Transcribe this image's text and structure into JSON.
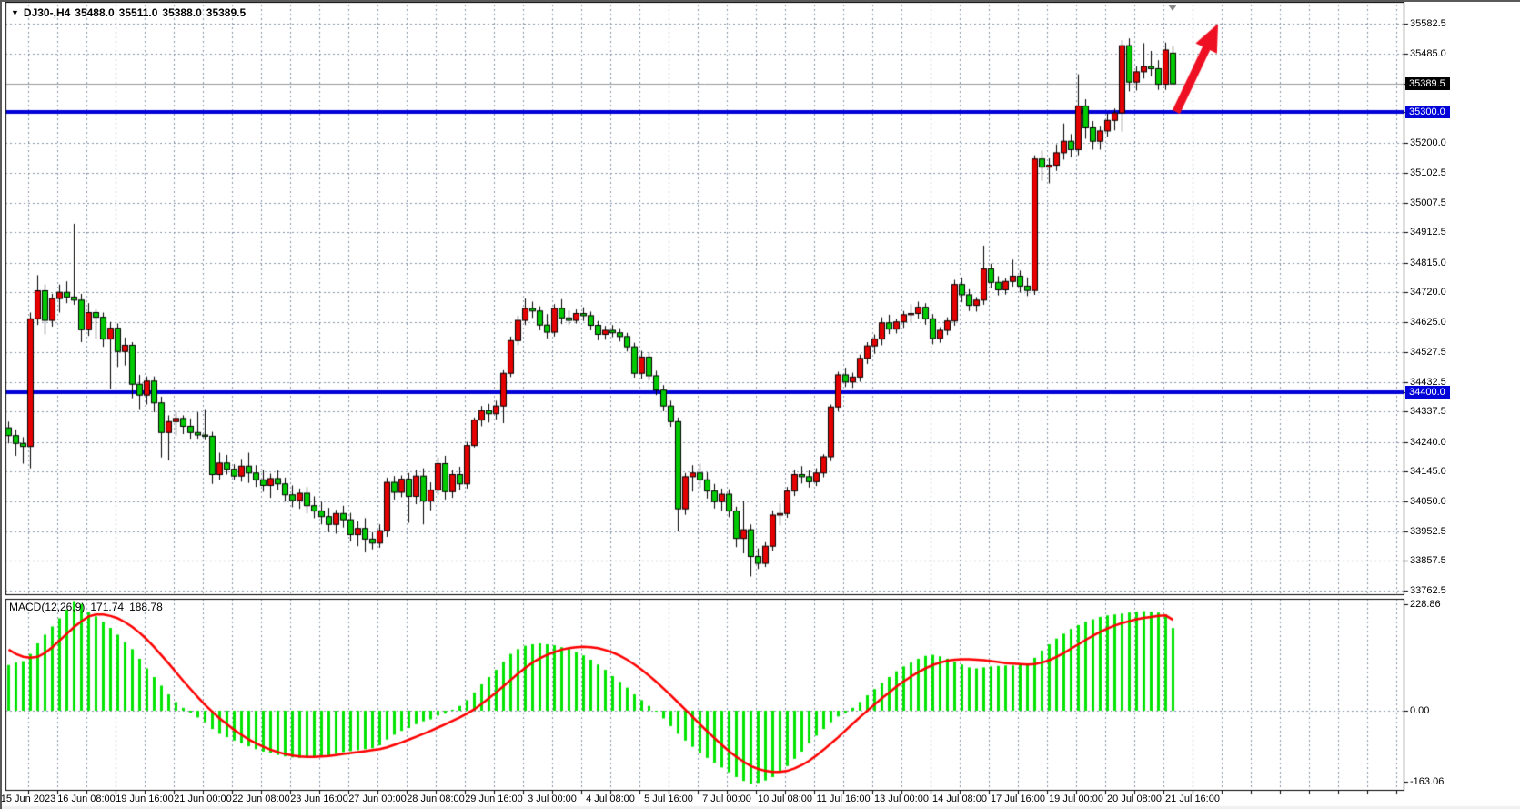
{
  "window": {
    "title": {
      "symbol": "DJ30-,H4",
      "open": "35488.0",
      "high": "35511.0",
      "low": "35388.0",
      "close": "35389.5"
    },
    "dropdown_icon": "▼"
  },
  "colors": {
    "bull": "#e60000",
    "bear": "#00ca00",
    "candle_border": "#000000",
    "hist": "#00e400",
    "signal": "#ff0000",
    "level_line": "#0000d8",
    "grid": "#8494a8",
    "current_price_line": "#9a9a9a",
    "arrow": "#ee0f22",
    "tag_current_bg": "#000000",
    "tag_level_bg": "#0000d8",
    "axis_text": "#000000",
    "background": "#ffffff",
    "border": "#000000"
  },
  "chart_data": {
    "type": "candlestick",
    "symbol": "DJ30-",
    "timeframe": "H4",
    "current_bar": {
      "open": 35488.0,
      "high": 35511.0,
      "low": 35388.0,
      "close": 35389.5
    },
    "price_axis": {
      "min": 33700,
      "max": 35650,
      "labels": [
        {
          "text": "35582.5"
        },
        {
          "text": "35485.0"
        },
        {
          "text": "35389.5",
          "highlight": "current"
        },
        {
          "text": "35300.0",
          "highlight": "level"
        },
        {
          "text": "35200.0"
        },
        {
          "text": "35102.5"
        },
        {
          "text": "35007.5"
        },
        {
          "text": "34912.5"
        },
        {
          "text": "34815.0"
        },
        {
          "text": "34720.0"
        },
        {
          "text": "34625.0"
        },
        {
          "text": "34527.5"
        },
        {
          "text": "34432.5"
        },
        {
          "text": "34400.0",
          "highlight": "level"
        },
        {
          "text": "34337.5"
        },
        {
          "text": "34240.0"
        },
        {
          "text": "34145.0"
        },
        {
          "text": "34050.0"
        },
        {
          "text": "33952.5"
        },
        {
          "text": "33857.5"
        },
        {
          "text": "33762.5"
        }
      ]
    },
    "time_axis": {
      "labels": [
        "15 Jun 2023",
        "16 Jun 08:00",
        "19 Jun 16:00",
        "21 Jun 00:00",
        "22 Jun 08:00",
        "23 Jun 16:00",
        "27 Jun 00:00",
        "28 Jun 08:00",
        "29 Jun 16:00",
        "3 Jul 00:00",
        "4 Jul 08:00",
        "5 Jul 16:00",
        "7 Jul 00:00",
        "10 Jul 08:00",
        "11 Jul 16:00",
        "13 Jul 00:00",
        "14 Jul 08:00",
        "17 Jul 16:00",
        "19 Jul 00:00",
        "20 Jul 08:00",
        "21 Jul 16:00"
      ]
    },
    "horizontal_levels": [
      35300.0,
      34400.0
    ],
    "current_price": 35389.5,
    "annotation_arrow": {
      "tail": [
        1291,
        121
      ],
      "tip": [
        1337,
        24
      ]
    },
    "candles": [
      [
        34285,
        34305,
        34235,
        34260
      ],
      [
        34260,
        34280,
        34195,
        34235
      ],
      [
        34235,
        34255,
        34170,
        34225
      ],
      [
        34225,
        34655,
        34155,
        34635
      ],
      [
        34635,
        34775,
        34615,
        34725
      ],
      [
        34725,
        34745,
        34585,
        34630
      ],
      [
        34630,
        34715,
        34610,
        34700
      ],
      [
        34700,
        34745,
        34655,
        34720
      ],
      [
        34720,
        34755,
        34685,
        34705
      ],
      [
        34705,
        34940,
        34680,
        34695
      ],
      [
        34695,
        34715,
        34560,
        34600
      ],
      [
        34600,
        34685,
        34580,
        34655
      ],
      [
        34655,
        34665,
        34570,
        34640
      ],
      [
        34640,
        34655,
        34545,
        34570
      ],
      [
        34570,
        34625,
        34410,
        34605
      ],
      [
        34605,
        34620,
        34480,
        34530
      ],
      [
        34530,
        34575,
        34485,
        34550
      ],
      [
        34550,
        34560,
        34380,
        34425
      ],
      [
        34425,
        34455,
        34345,
        34390
      ],
      [
        34390,
        34450,
        34360,
        34435
      ],
      [
        34435,
        34450,
        34335,
        34365
      ],
      [
        34365,
        34385,
        34190,
        34270
      ],
      [
        34270,
        34325,
        34180,
        34305
      ],
      [
        34305,
        34335,
        34260,
        34315
      ],
      [
        34315,
        34325,
        34265,
        34290
      ],
      [
        34290,
        34315,
        34250,
        34270
      ],
      [
        34270,
        34335,
        34250,
        34262
      ],
      [
        34262,
        34345,
        34248,
        34258
      ],
      [
        34258,
        34272,
        34105,
        34135
      ],
      [
        34135,
        34205,
        34118,
        34172
      ],
      [
        34172,
        34198,
        34135,
        34152
      ],
      [
        34152,
        34168,
        34118,
        34130
      ],
      [
        34130,
        34185,
        34112,
        34162
      ],
      [
        34162,
        34205,
        34108,
        34140
      ],
      [
        34140,
        34165,
        34095,
        34118
      ],
      [
        34118,
        34150,
        34080,
        34100
      ],
      [
        34100,
        34138,
        34060,
        34122
      ],
      [
        34122,
        34148,
        34085,
        34105
      ],
      [
        34105,
        34125,
        34048,
        34070
      ],
      [
        34070,
        34100,
        34030,
        34052
      ],
      [
        34052,
        34090,
        34025,
        34075
      ],
      [
        34075,
        34095,
        34010,
        34035
      ],
      [
        34035,
        34065,
        33995,
        34018
      ],
      [
        34018,
        34048,
        33975,
        34000
      ],
      [
        34000,
        34028,
        33950,
        33975
      ],
      [
        33975,
        34022,
        33945,
        34010
      ],
      [
        34010,
        34035,
        33965,
        33990
      ],
      [
        33990,
        34012,
        33920,
        33942
      ],
      [
        33942,
        33985,
        33905,
        33962
      ],
      [
        33962,
        33995,
        33885,
        33928
      ],
      [
        33928,
        33950,
        33895,
        33915
      ],
      [
        33915,
        33975,
        33900,
        33955
      ],
      [
        33955,
        34125,
        33935,
        34110
      ],
      [
        34110,
        34130,
        34055,
        34078
      ],
      [
        34078,
        34132,
        34062,
        34120
      ],
      [
        34120,
        34140,
        33980,
        34065
      ],
      [
        34065,
        34150,
        34040,
        34130
      ],
      [
        34130,
        34155,
        33975,
        34050
      ],
      [
        34050,
        34110,
        34020,
        34085
      ],
      [
        34085,
        34190,
        34070,
        34170
      ],
      [
        34170,
        34195,
        34055,
        34080
      ],
      [
        34080,
        34150,
        34060,
        34135
      ],
      [
        34135,
        34160,
        34085,
        34105
      ],
      [
        34105,
        34240,
        34090,
        34228
      ],
      [
        34228,
        34318,
        34222,
        34310
      ],
      [
        34310,
        34355,
        34290,
        34340
      ],
      [
        34340,
        34362,
        34302,
        34330
      ],
      [
        34330,
        34372,
        34312,
        34355
      ],
      [
        34355,
        34470,
        34300,
        34460
      ],
      [
        34460,
        34578,
        34448,
        34565
      ],
      [
        34565,
        34645,
        34550,
        34630
      ],
      [
        34630,
        34700,
        34615,
        34668
      ],
      [
        34668,
        34690,
        34638,
        34660
      ],
      [
        34660,
        34675,
        34598,
        34615
      ],
      [
        34615,
        34650,
        34572,
        34592
      ],
      [
        34592,
        34682,
        34578,
        34668
      ],
      [
        34668,
        34698,
        34618,
        34638
      ],
      [
        34638,
        34662,
        34616,
        34630
      ],
      [
        34630,
        34665,
        34620,
        34652
      ],
      [
        34652,
        34672,
        34628,
        34645
      ],
      [
        34645,
        34658,
        34598,
        34614
      ],
      [
        34614,
        34628,
        34566,
        34585
      ],
      [
        34585,
        34612,
        34568,
        34598
      ],
      [
        34598,
        34615,
        34576,
        34590
      ],
      [
        34590,
        34605,
        34562,
        34578
      ],
      [
        34578,
        34590,
        34530,
        34545
      ],
      [
        34545,
        34558,
        34446,
        34460
      ],
      [
        34460,
        34532,
        34442,
        34512
      ],
      [
        34512,
        34528,
        34436,
        34452
      ],
      [
        34452,
        34468,
        34390,
        34406
      ],
      [
        34406,
        34422,
        34338,
        34355
      ],
      [
        34355,
        34372,
        34288,
        34305
      ],
      [
        34305,
        34318,
        33952,
        34025
      ],
      [
        34025,
        34140,
        34006,
        34128
      ],
      [
        34128,
        34165,
        34080,
        34140
      ],
      [
        34140,
        34170,
        34093,
        34118
      ],
      [
        34118,
        34142,
        34058,
        34082
      ],
      [
        34082,
        34105,
        34026,
        34048
      ],
      [
        34048,
        34090,
        34018,
        34072
      ],
      [
        34072,
        34088,
        33998,
        34018
      ],
      [
        34018,
        34032,
        33902,
        33930
      ],
      [
        33930,
        34050,
        33882,
        33958
      ],
      [
        33958,
        33975,
        33808,
        33872
      ],
      [
        33872,
        33898,
        33832,
        33850
      ],
      [
        33850,
        33918,
        33838,
        33905
      ],
      [
        33905,
        34020,
        33890,
        34005
      ],
      [
        34005,
        34042,
        33972,
        34010
      ],
      [
        34010,
        34095,
        33996,
        34082
      ],
      [
        34082,
        34150,
        34066,
        34135
      ],
      [
        34135,
        34162,
        34106,
        34128
      ],
      [
        34128,
        34148,
        34093,
        34112
      ],
      [
        34112,
        34155,
        34098,
        34140
      ],
      [
        34140,
        34200,
        34126,
        34192
      ],
      [
        34192,
        34360,
        34178,
        34352
      ],
      [
        34352,
        34465,
        34338,
        34455
      ],
      [
        34455,
        34478,
        34416,
        34432
      ],
      [
        34432,
        34462,
        34413,
        34448
      ],
      [
        34448,
        34520,
        34433,
        34508
      ],
      [
        34508,
        34560,
        34490,
        34548
      ],
      [
        34548,
        34585,
        34523,
        34570
      ],
      [
        34570,
        34640,
        34550,
        34622
      ],
      [
        34622,
        34648,
        34586,
        34602
      ],
      [
        34602,
        34635,
        34588,
        34625
      ],
      [
        34625,
        34660,
        34606,
        34648
      ],
      [
        34648,
        34682,
        34622,
        34652
      ],
      [
        34652,
        34690,
        34636,
        34672
      ],
      [
        34672,
        34685,
        34616,
        34635
      ],
      [
        34635,
        34650,
        34553,
        34572
      ],
      [
        34572,
        34608,
        34558,
        34598
      ],
      [
        34598,
        34640,
        34583,
        34628
      ],
      [
        34628,
        34760,
        34613,
        34745
      ],
      [
        34745,
        34768,
        34688,
        34712
      ],
      [
        34712,
        34730,
        34660,
        34678
      ],
      [
        34678,
        34705,
        34658,
        34695
      ],
      [
        34695,
        34870,
        34680,
        34795
      ],
      [
        34795,
        34812,
        34733,
        34752
      ],
      [
        34752,
        34772,
        34710,
        34728
      ],
      [
        34728,
        34765,
        34713,
        34755
      ],
      [
        34755,
        34825,
        34738,
        34772
      ],
      [
        34772,
        34790,
        34720,
        34740
      ],
      [
        34740,
        34768,
        34708,
        34726
      ],
      [
        34726,
        35160,
        34712,
        35148
      ],
      [
        35148,
        35175,
        35078,
        35122
      ],
      [
        35122,
        35150,
        35070,
        35128
      ],
      [
        35128,
        35195,
        35110,
        35168
      ],
      [
        35168,
        35262,
        35146,
        35205
      ],
      [
        35205,
        35228,
        35153,
        35178
      ],
      [
        35178,
        35420,
        35160,
        35318
      ],
      [
        35318,
        35340,
        35213,
        35248
      ],
      [
        35248,
        35270,
        35178,
        35205
      ],
      [
        35205,
        35252,
        35178,
        35238
      ],
      [
        35238,
        35295,
        35220,
        35272
      ],
      [
        35272,
        35310,
        35240,
        35296
      ],
      [
        35296,
        35530,
        35236,
        35512
      ],
      [
        35512,
        35535,
        35365,
        35395
      ],
      [
        35395,
        35445,
        35368,
        35428
      ],
      [
        35428,
        35520,
        35406,
        35445
      ],
      [
        35445,
        35495,
        35413,
        35438
      ],
      [
        35438,
        35465,
        35370,
        35388
      ],
      [
        35388,
        35522,
        35370,
        35498
      ],
      [
        35488,
        35511,
        35388,
        35389.5
      ]
    ],
    "macd": {
      "label": "MACD(12,26,9)",
      "main_value": "171.74",
      "signal_value": "188.78",
      "scale_max": "228.86",
      "scale_zero": "0.00",
      "scale_min": "-163.06",
      "histogram": [
        95,
        100,
        103,
        118,
        140,
        158,
        175,
        192,
        210,
        228,
        222,
        205,
        196,
        185,
        172,
        158,
        142,
        128,
        108,
        88,
        70,
        52,
        34,
        18,
        6,
        -4,
        -14,
        -24,
        -38,
        -48,
        -55,
        -62,
        -68,
        -74,
        -80,
        -85,
        -88,
        -92,
        -95,
        -97,
        -98,
        -97,
        -96,
        -95,
        -93,
        -90,
        -86,
        -84,
        -82,
        -80,
        -78,
        -72,
        -60,
        -50,
        -42,
        -36,
        -28,
        -22,
        -18,
        -10,
        -6,
        2,
        10,
        22,
        38,
        55,
        70,
        85,
        102,
        118,
        128,
        135,
        138,
        140,
        138,
        136,
        132,
        128,
        122,
        115,
        106,
        96,
        85,
        72,
        60,
        48,
        34,
        22,
        10,
        -2,
        -16,
        -32,
        -48,
        -62,
        -75,
        -88,
        -98,
        -108,
        -118,
        -128,
        -138,
        -146,
        -152,
        -150,
        -145,
        -138,
        -128,
        -115,
        -100,
        -85,
        -68,
        -52,
        -38,
        -24,
        -12,
        -5,
        6,
        18,
        32,
        45,
        58,
        70,
        82,
        92,
        100,
        108,
        114,
        116,
        113,
        108,
        102,
        96,
        90,
        88,
        90,
        92,
        93,
        94,
        94,
        95,
        96,
        110,
        125,
        138,
        150,
        160,
        170,
        178,
        185,
        190,
        195,
        198,
        200,
        202,
        204,
        206,
        207,
        206,
        204,
        200,
        171.74
      ],
      "signal": [
        127,
        118,
        112,
        110,
        112,
        120,
        132,
        146,
        160,
        174,
        186,
        196,
        200,
        200,
        197,
        192,
        184,
        174,
        162,
        148,
        132,
        115,
        98,
        80,
        62,
        45,
        28,
        12,
        -2,
        -16,
        -28,
        -40,
        -50,
        -60,
        -68,
        -75,
        -81,
        -86,
        -90,
        -93,
        -95,
        -96,
        -96,
        -95,
        -94,
        -92,
        -90,
        -88,
        -86,
        -84,
        -82,
        -80,
        -76,
        -71,
        -66,
        -60,
        -54,
        -48,
        -42,
        -35,
        -28,
        -21,
        -14,
        -6,
        3,
        14,
        26,
        38,
        51,
        64,
        77,
        89,
        100,
        109,
        116,
        122,
        127,
        130,
        132,
        133,
        132,
        130,
        126,
        121,
        114,
        106,
        96,
        85,
        73,
        60,
        46,
        32,
        17,
        2,
        -13,
        -28,
        -43,
        -57,
        -71,
        -84,
        -96,
        -106,
        -115,
        -121,
        -125,
        -127,
        -127,
        -125,
        -120,
        -113,
        -104,
        -93,
        -81,
        -68,
        -55,
        -41,
        -27,
        -13,
        0,
        13,
        26,
        38,
        50,
        61,
        71,
        80,
        88,
        95,
        100,
        104,
        106,
        107,
        107,
        106,
        105,
        103,
        101,
        99,
        98,
        97,
        96,
        97,
        100,
        105,
        112,
        120,
        129,
        138,
        147,
        156,
        164,
        171,
        177,
        182,
        186,
        190,
        193,
        195,
        197,
        198,
        188.78
      ]
    }
  }
}
